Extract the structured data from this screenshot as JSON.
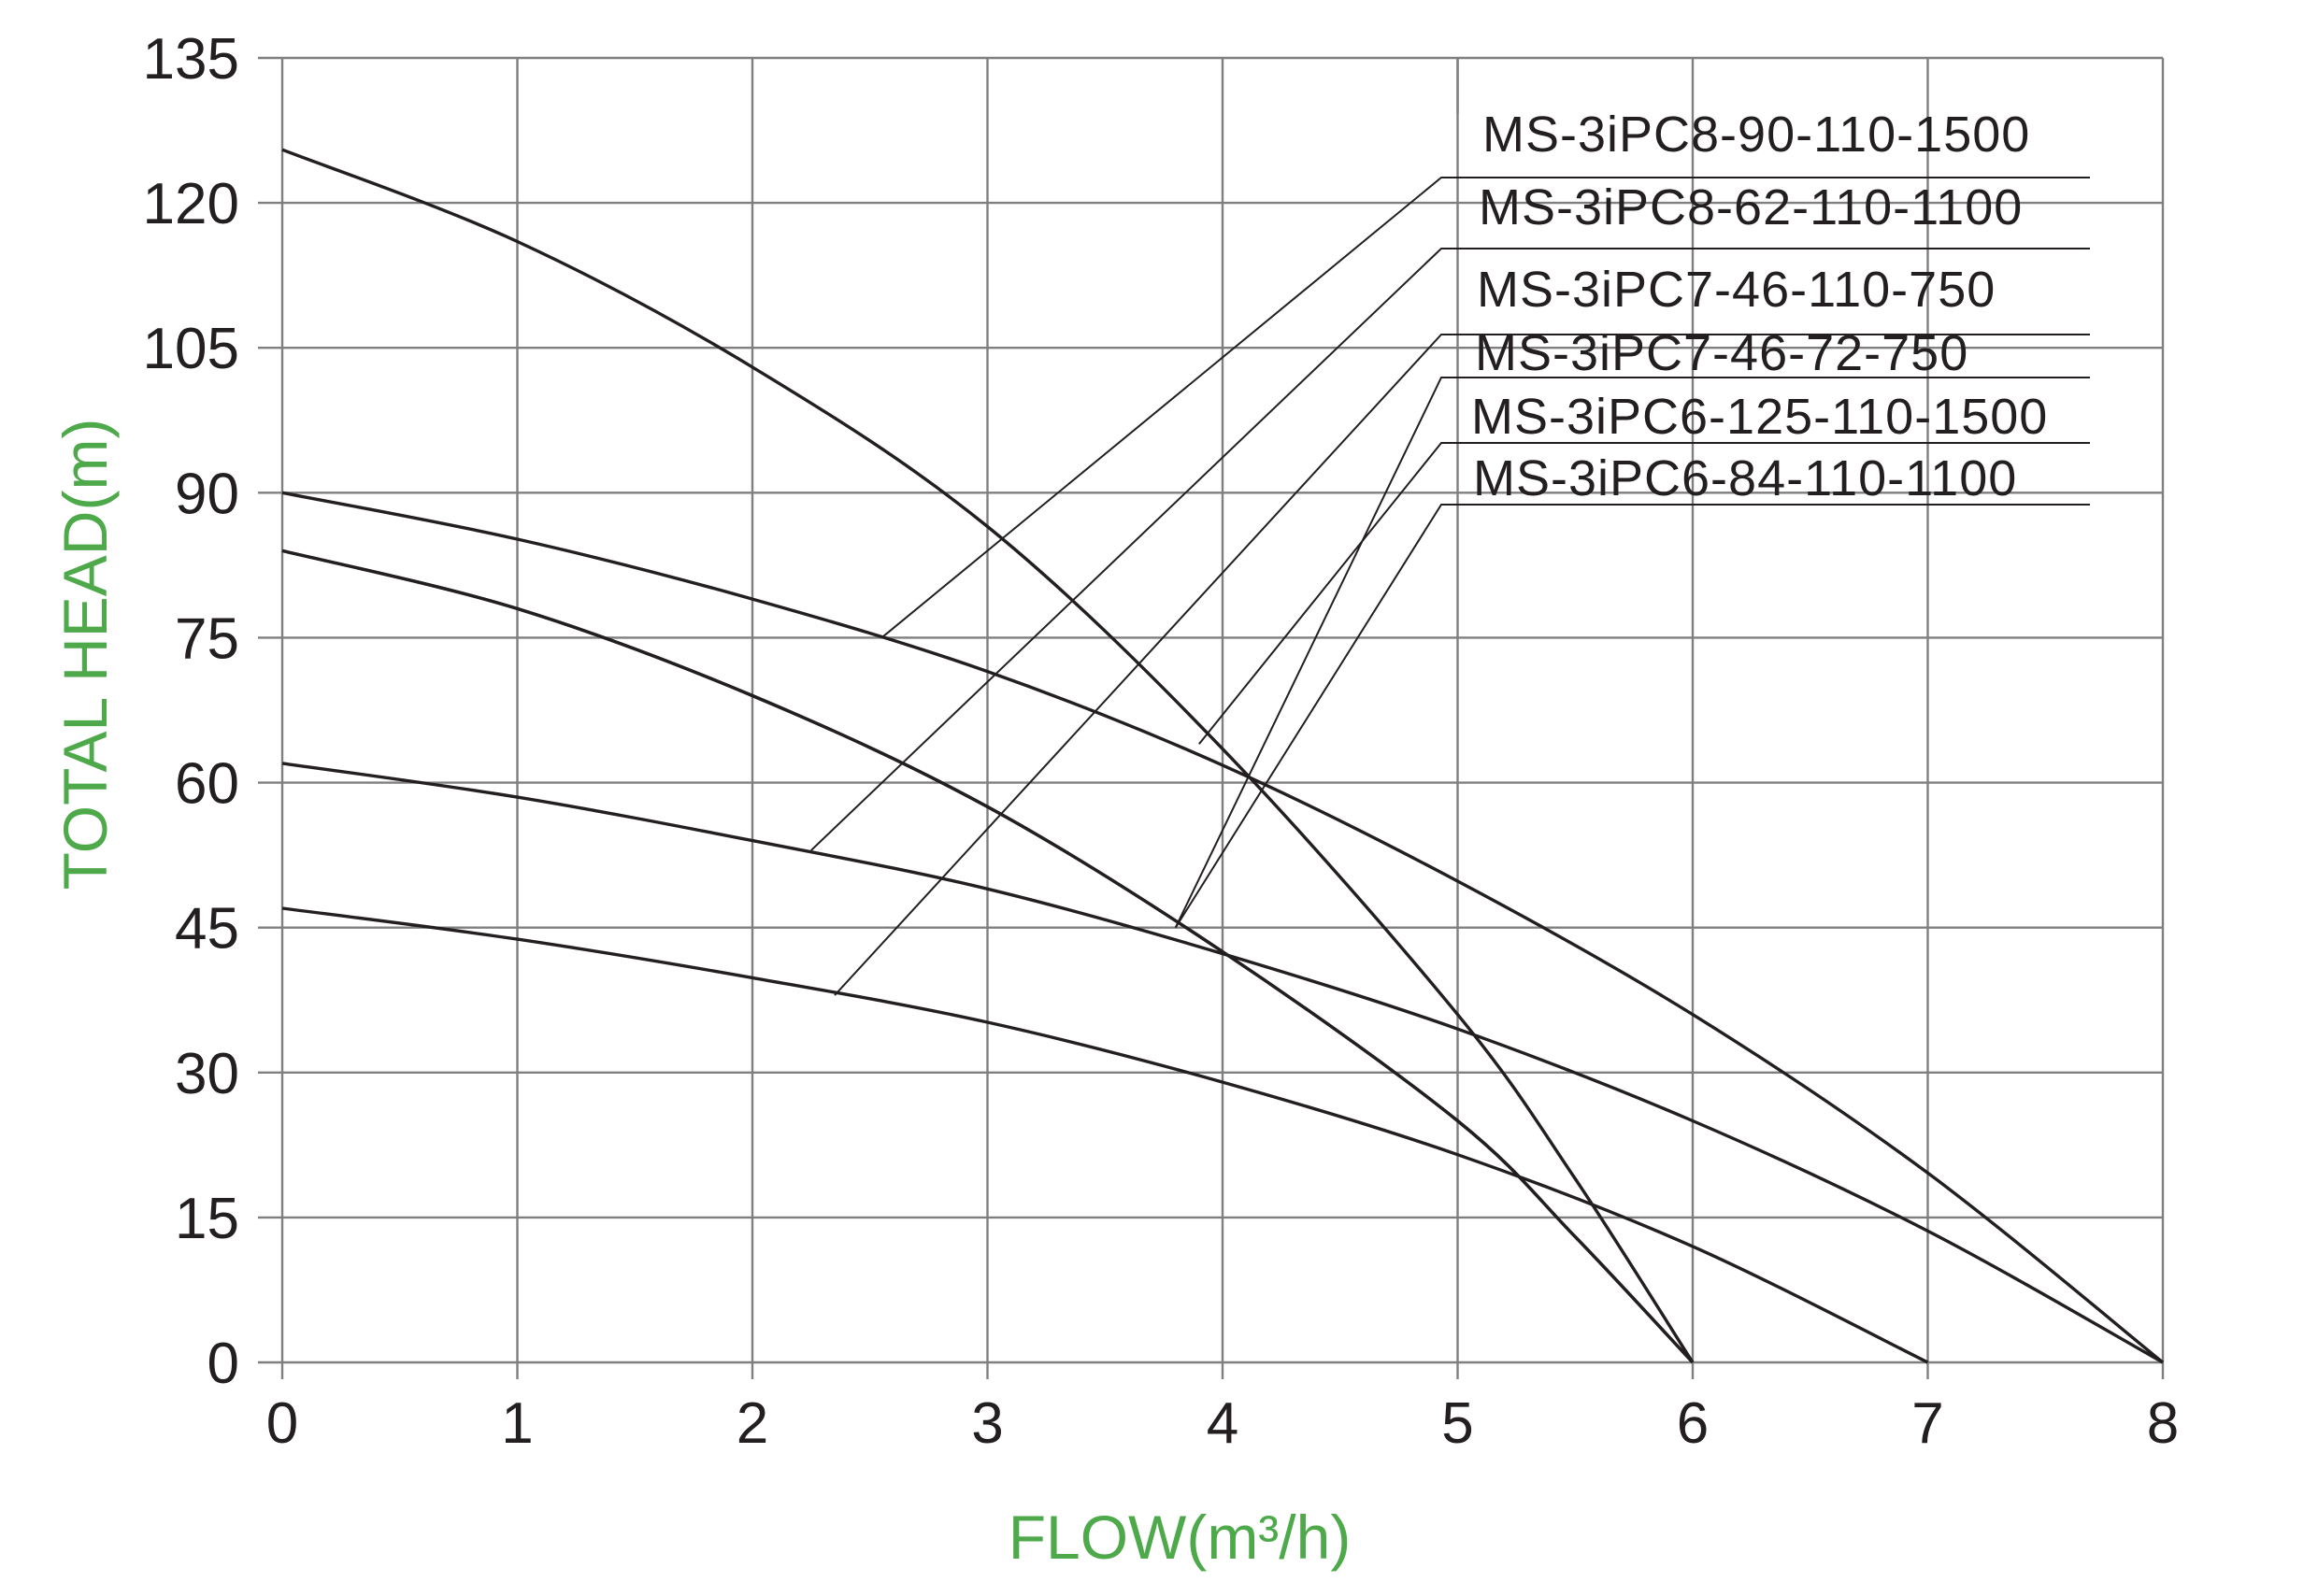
{
  "chart_data": {
    "type": "line",
    "xlabel": "FLOW(m³/h)",
    "ylabel": "TOTAL HEAD(m)",
    "xlim": [
      0,
      8
    ],
    "ylim": [
      0,
      135
    ],
    "x_ticks": [
      "0",
      "1",
      "2",
      "3",
      "4",
      "5",
      "6",
      "7",
      "8"
    ],
    "y_ticks": [
      "0",
      "15",
      "30",
      "45",
      "60",
      "75",
      "90",
      "105",
      "120",
      "135"
    ],
    "grid": true,
    "legend": "callout labels top-right with leader lines",
    "colors": {
      "axis_title": "#4ea94b",
      "curves": "#231f20",
      "grid": "#7f7f7f"
    },
    "series": [
      {
        "name": "MS-3iPC8-90-110-1500",
        "x": [
          0,
          1,
          2,
          3,
          4,
          5,
          6,
          7,
          8
        ],
        "y": [
          90,
          85.2,
          79,
          71.5,
          61.8,
          49.8,
          36,
          19.6,
          0
        ],
        "leader_anchor": [
          2.55,
          75
        ]
      },
      {
        "name": "MS-3iPC8-62-110-1100",
        "x": [
          0,
          1,
          2,
          3,
          4,
          5,
          6,
          7,
          8
        ],
        "y": [
          62,
          58.5,
          54,
          49,
          42.3,
          34.5,
          25,
          13.6,
          0
        ],
        "leader_anchor": [
          2.25,
          53
        ]
      },
      {
        "name": "MS-3iPC7-46-110-750",
        "x": [
          0,
          1,
          2,
          3,
          4,
          5,
          6,
          7
        ],
        "y": [
          47,
          43.8,
          39.8,
          35.2,
          29,
          21.5,
          12,
          0
        ],
        "leader_anchor": [
          2.35,
          38
        ]
      },
      {
        "name": "MS-3iPC7-46-72-750",
        "x": [
          0,
          1,
          2,
          3,
          4,
          5,
          5.5,
          6
        ],
        "y": [
          84,
          78,
          69,
          57.5,
          42.5,
          25,
          13,
          0
        ],
        "leader_anchor": [
          3.8,
          45
        ]
      },
      {
        "name": "MS-3iPC6-125-110-1500",
        "x": [
          0,
          1,
          2,
          3,
          4,
          5,
          5.5,
          6
        ],
        "y": [
          125.5,
          116,
          103,
          86.5,
          63.5,
          36,
          19,
          0
        ],
        "leader_anchor": [
          3.9,
          64
        ]
      },
      {
        "name": "MS-3iPC6-84-110-1100",
        "x": [
          0,
          1,
          2,
          3,
          4,
          5,
          5.5,
          6
        ],
        "y": [
          84,
          78,
          69,
          57.5,
          42.5,
          25,
          13,
          0
        ],
        "leader_anchor": [
          3.8,
          45
        ]
      }
    ]
  }
}
